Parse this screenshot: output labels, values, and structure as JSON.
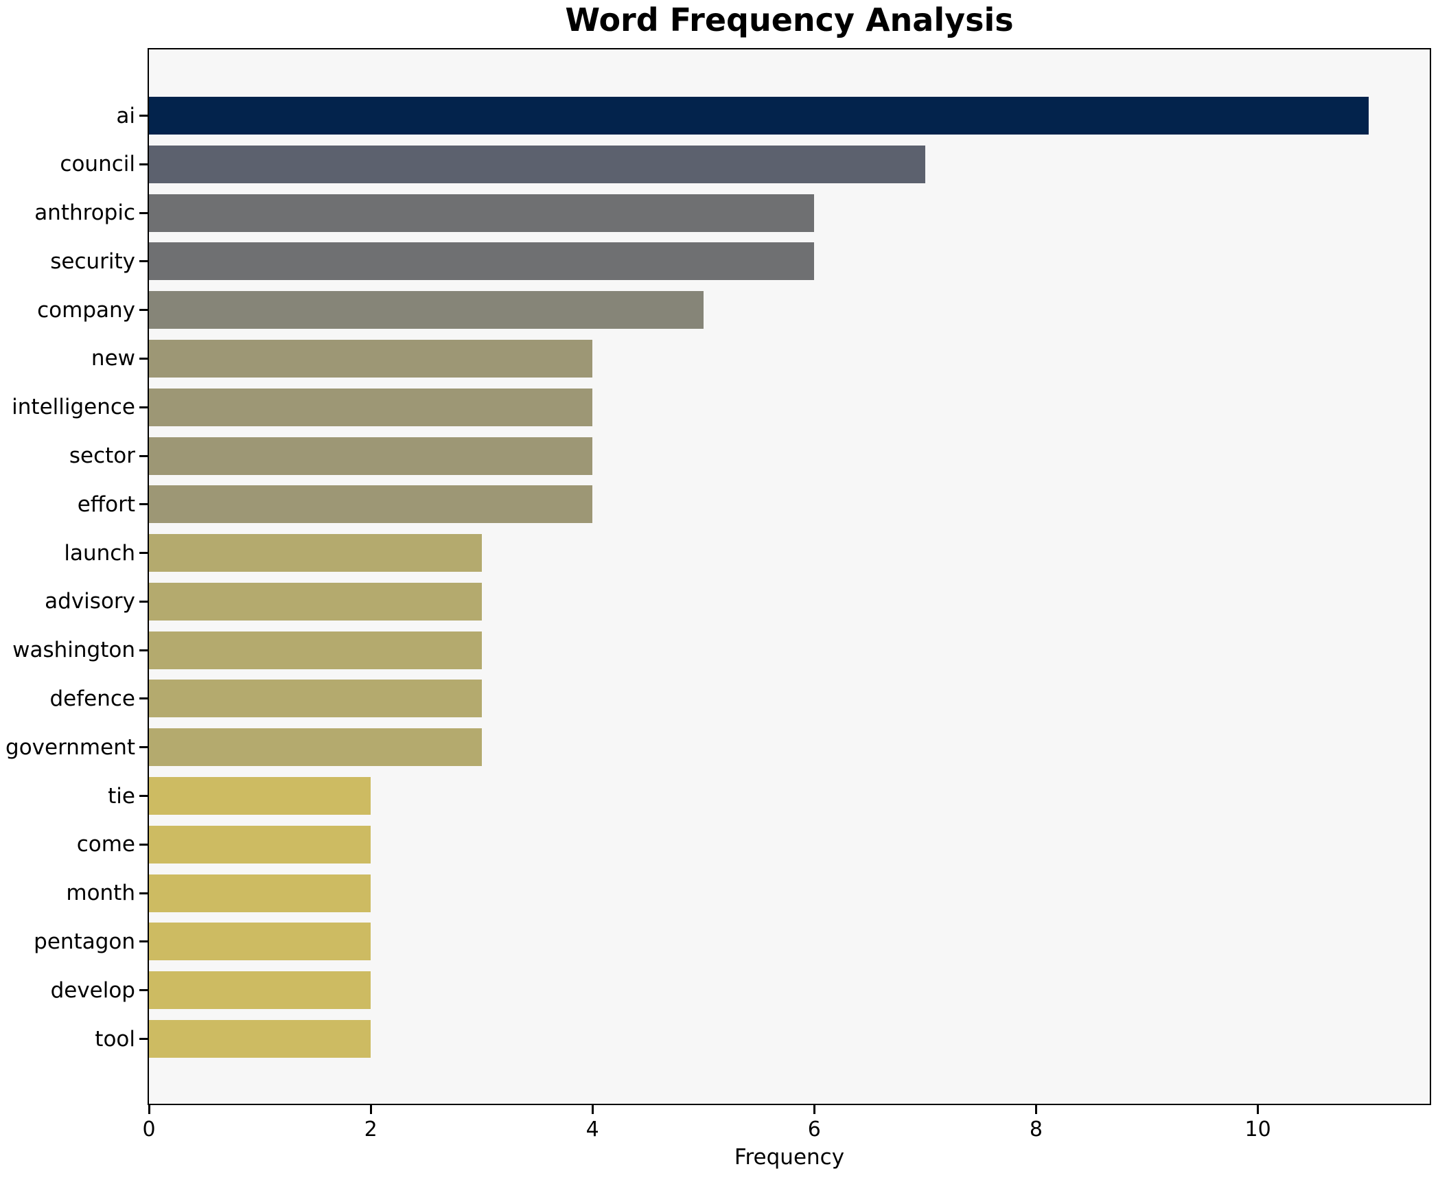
{
  "chart_data": {
    "type": "bar",
    "orientation": "horizontal",
    "title": "Word Frequency Analysis",
    "xlabel": "Frequency",
    "ylabel": "",
    "grid": false,
    "legend": null,
    "xlim": [
      0,
      11.55
    ],
    "x_ticks": [
      0,
      2,
      4,
      6,
      8,
      10
    ],
    "categories": [
      "ai",
      "council",
      "anthropic",
      "security",
      "company",
      "new",
      "intelligence",
      "sector",
      "effort",
      "launch",
      "advisory",
      "washington",
      "defence",
      "government",
      "tie",
      "come",
      "month",
      "pentagon",
      "develop",
      "tool"
    ],
    "values": [
      11,
      7,
      6,
      6,
      5,
      4,
      4,
      4,
      4,
      3,
      3,
      3,
      3,
      3,
      2,
      2,
      2,
      2,
      2,
      2
    ],
    "bar_colors": [
      "#03234c",
      "#5c616e",
      "#6f7072",
      "#6f7072",
      "#868578",
      "#9d9775",
      "#9d9775",
      "#9d9775",
      "#9d9775",
      "#b4aa6e",
      "#b4aa6e",
      "#b4aa6e",
      "#b4aa6e",
      "#b4aa6e",
      "#cdbb62",
      "#cdbb62",
      "#cdbb62",
      "#cdbb62",
      "#cdbb62",
      "#cdbb62"
    ],
    "colors": {
      "plot_background": "#f7f7f7",
      "figure_background": "#ffffff",
      "spine": "#000000",
      "text": "#000000"
    }
  }
}
